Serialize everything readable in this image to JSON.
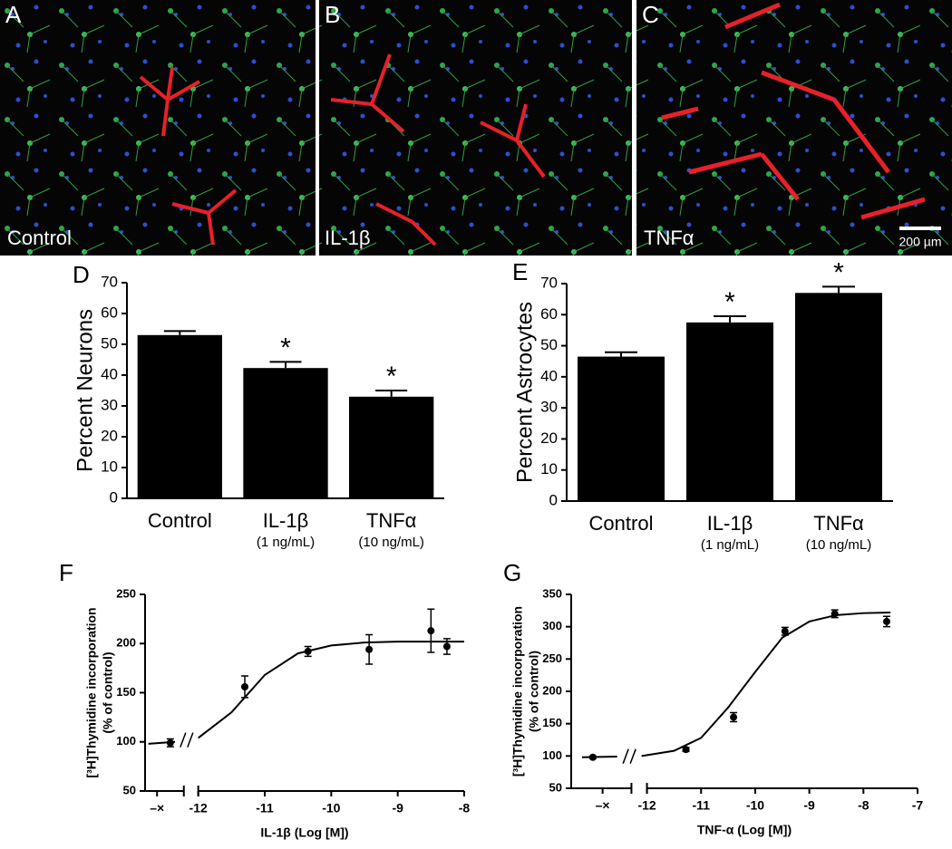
{
  "image_panels": [
    {
      "letter": "A",
      "label": "Control"
    },
    {
      "letter": "B",
      "label": "IL-1β"
    },
    {
      "letter": "C",
      "label": "TNFα",
      "scale_bar": "200 µm"
    }
  ],
  "chart_data": [
    {
      "type": "bar",
      "panel": "D",
      "ylabel": "Percent Neurons",
      "categories": [
        "Control",
        "IL-1β",
        "TNFα"
      ],
      "sublabels": [
        null,
        "(1 ng/mL)",
        "(10 ng/mL)"
      ],
      "values": [
        53,
        42.3,
        33
      ],
      "errors": [
        1.3,
        2,
        2
      ],
      "annotations": [
        null,
        "*",
        "*"
      ],
      "color": "#000000",
      "ylim": [
        0,
        70
      ],
      "yticks": [
        0,
        10,
        20,
        30,
        40,
        50,
        60,
        70
      ]
    },
    {
      "type": "bar",
      "panel": "E",
      "ylabel": "Percent Astrocytes",
      "categories": [
        "Control",
        "IL-1β",
        "TNFα"
      ],
      "sublabels": [
        null,
        "(1 ng/mL)",
        "(10 ng/mL)"
      ],
      "values": [
        46.5,
        57.5,
        67
      ],
      "errors": [
        1.4,
        2,
        2
      ],
      "annotations": [
        null,
        "*",
        "*"
      ],
      "color": "#000000",
      "ylim": [
        0,
        70
      ],
      "yticks": [
        0,
        10,
        20,
        30,
        40,
        50,
        60,
        70
      ]
    },
    {
      "type": "scatter",
      "panel": "F",
      "ylabel": [
        "[³H]Thymidine incorporation",
        "(% of control)"
      ],
      "xlabel": "IL-1β (Log [M])",
      "x": [
        -12.42,
        -11.3,
        -10.35,
        -9.43,
        -8.5,
        -8.26
      ],
      "values": [
        99,
        156,
        192,
        194,
        213,
        197
      ],
      "errors": [
        4,
        11,
        5,
        15,
        22,
        8
      ],
      "fit": {
        "x": [
          -12.75,
          -12.35,
          null,
          -12.0,
          -11.5,
          -11.0,
          -10.5,
          -10.0,
          -9.5,
          -9.0,
          -8.5,
          -8.0
        ],
        "y": [
          98,
          100,
          null,
          104,
          130,
          168,
          190,
          198,
          201,
          202,
          202,
          202
        ]
      },
      "color": "#000000",
      "xlim": [
        -12.8,
        -8
      ],
      "xticks": [
        {
          "value": -12.62,
          "label": "–×"
        },
        -12,
        -11,
        -10,
        -9,
        -8
      ],
      "ylim": [
        50,
        250
      ],
      "yticks": [
        50,
        100,
        150,
        200,
        250
      ]
    },
    {
      "type": "scatter",
      "panel": "G",
      "ylabel": [
        "[³H]Thymidine incorporation",
        "(% of control)"
      ],
      "xlabel": "TNF-α (Log [M])",
      "x": [
        -13.0,
        -11.28,
        -10.4,
        -9.45,
        -8.53,
        -7.57
      ],
      "values": [
        98,
        110,
        160,
        293,
        320,
        308
      ],
      "errors": [
        2,
        3,
        7,
        6,
        6,
        8
      ],
      "fit": {
        "x": [
          -13.2,
          -12.55,
          null,
          -12.1,
          -11.5,
          -11.0,
          -10.5,
          -10.0,
          -9.5,
          -9.0,
          -8.5,
          -8.0,
          -7.5
        ],
        "y": [
          98,
          99,
          null,
          100,
          108,
          128,
          175,
          230,
          283,
          308,
          318,
          321,
          322
        ]
      },
      "color": "#000000",
      "xlim": [
        -13.4,
        -7
      ],
      "xticks": [
        {
          "value": -12.82,
          "label": "–×"
        },
        -12,
        -11,
        -10,
        -9,
        -8,
        -7
      ],
      "ylim": [
        50,
        350
      ],
      "yticks": [
        50,
        100,
        150,
        200,
        250,
        300,
        350
      ]
    }
  ]
}
